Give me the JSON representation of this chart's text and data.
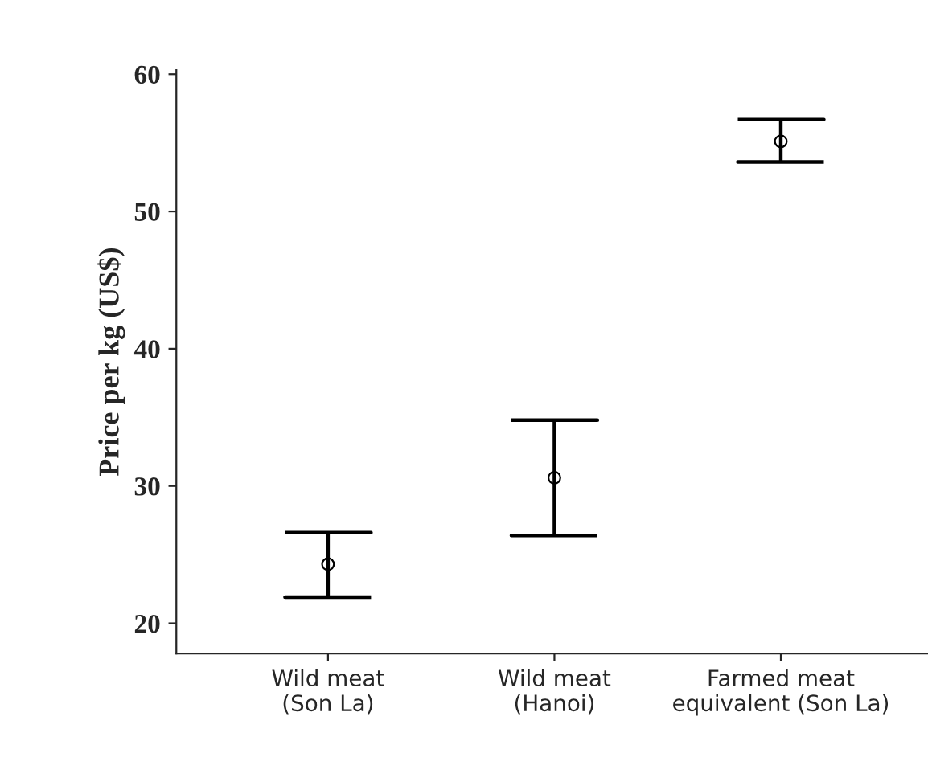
{
  "chart_data": {
    "type": "scatter",
    "ylabel": "Price per kg (US$)",
    "categories": [
      "Wild meat\n(Son La)",
      "Wild meat\n(Hanoi)",
      "Farmed meat\nequivalent (Son La)"
    ],
    "values": [
      24.3,
      30.6,
      55.1
    ],
    "errors": [
      [
        21.9,
        26.6
      ],
      [
        26.4,
        34.8
      ],
      [
        53.6,
        56.7
      ]
    ],
    "color": "#000000",
    "marker": "circle",
    "ylim": [
      17.8,
      60.3
    ],
    "yticks": [
      20,
      30,
      40,
      50,
      60
    ],
    "grid": false,
    "legend": false
  }
}
